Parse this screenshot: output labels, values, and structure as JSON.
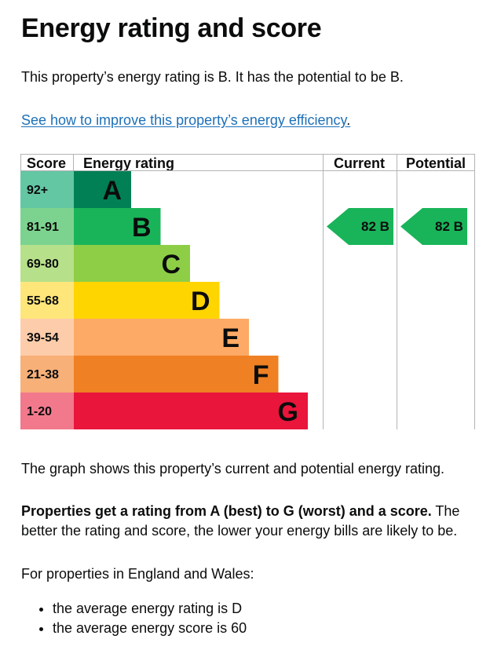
{
  "page": {
    "title": "Energy rating and score",
    "rating_sentence": "This property’s energy rating is B. It has the potential to be B.",
    "link_text": "See how to improve this property’s energy efficiency",
    "link_suffix": ".",
    "graph_sentence": "The graph shows this property’s current and potential energy rating.",
    "props_bold": "Properties get a rating from A (best) to G (worst) and a score.",
    "props_rest": " The better the rating and score, the lower your energy bills are likely to be.",
    "wales_intro": "For properties in England and Wales:",
    "averages": [
      "the average energy rating is D",
      "the average energy score is 60"
    ]
  },
  "chart_data": {
    "type": "bar",
    "headers": [
      "Score",
      "Energy rating",
      "Current",
      "Potential"
    ],
    "bands": [
      {
        "band": "A",
        "score_range": "92+",
        "color": "#008054",
        "score_color": "#64c7a3"
      },
      {
        "band": "B",
        "score_range": "81-91",
        "color": "#19b459",
        "score_color": "#7cd38f"
      },
      {
        "band": "C",
        "score_range": "69-80",
        "color": "#8dce46",
        "score_color": "#b7e08a"
      },
      {
        "band": "D",
        "score_range": "55-68",
        "color": "#ffd500",
        "score_color": "#fee67a"
      },
      {
        "band": "E",
        "score_range": "39-54",
        "color": "#fcaa65",
        "score_color": "#fdccaa"
      },
      {
        "band": "F",
        "score_range": "21-38",
        "color": "#ef8023",
        "score_color": "#f7b078"
      },
      {
        "band": "G",
        "score_range": "1-20",
        "color": "#e9153b",
        "score_color": "#f2798c"
      }
    ],
    "current": {
      "score": 82,
      "band": "B",
      "label": "82  B"
    },
    "potential": {
      "score": 82,
      "band": "B",
      "label": "82  B"
    }
  }
}
